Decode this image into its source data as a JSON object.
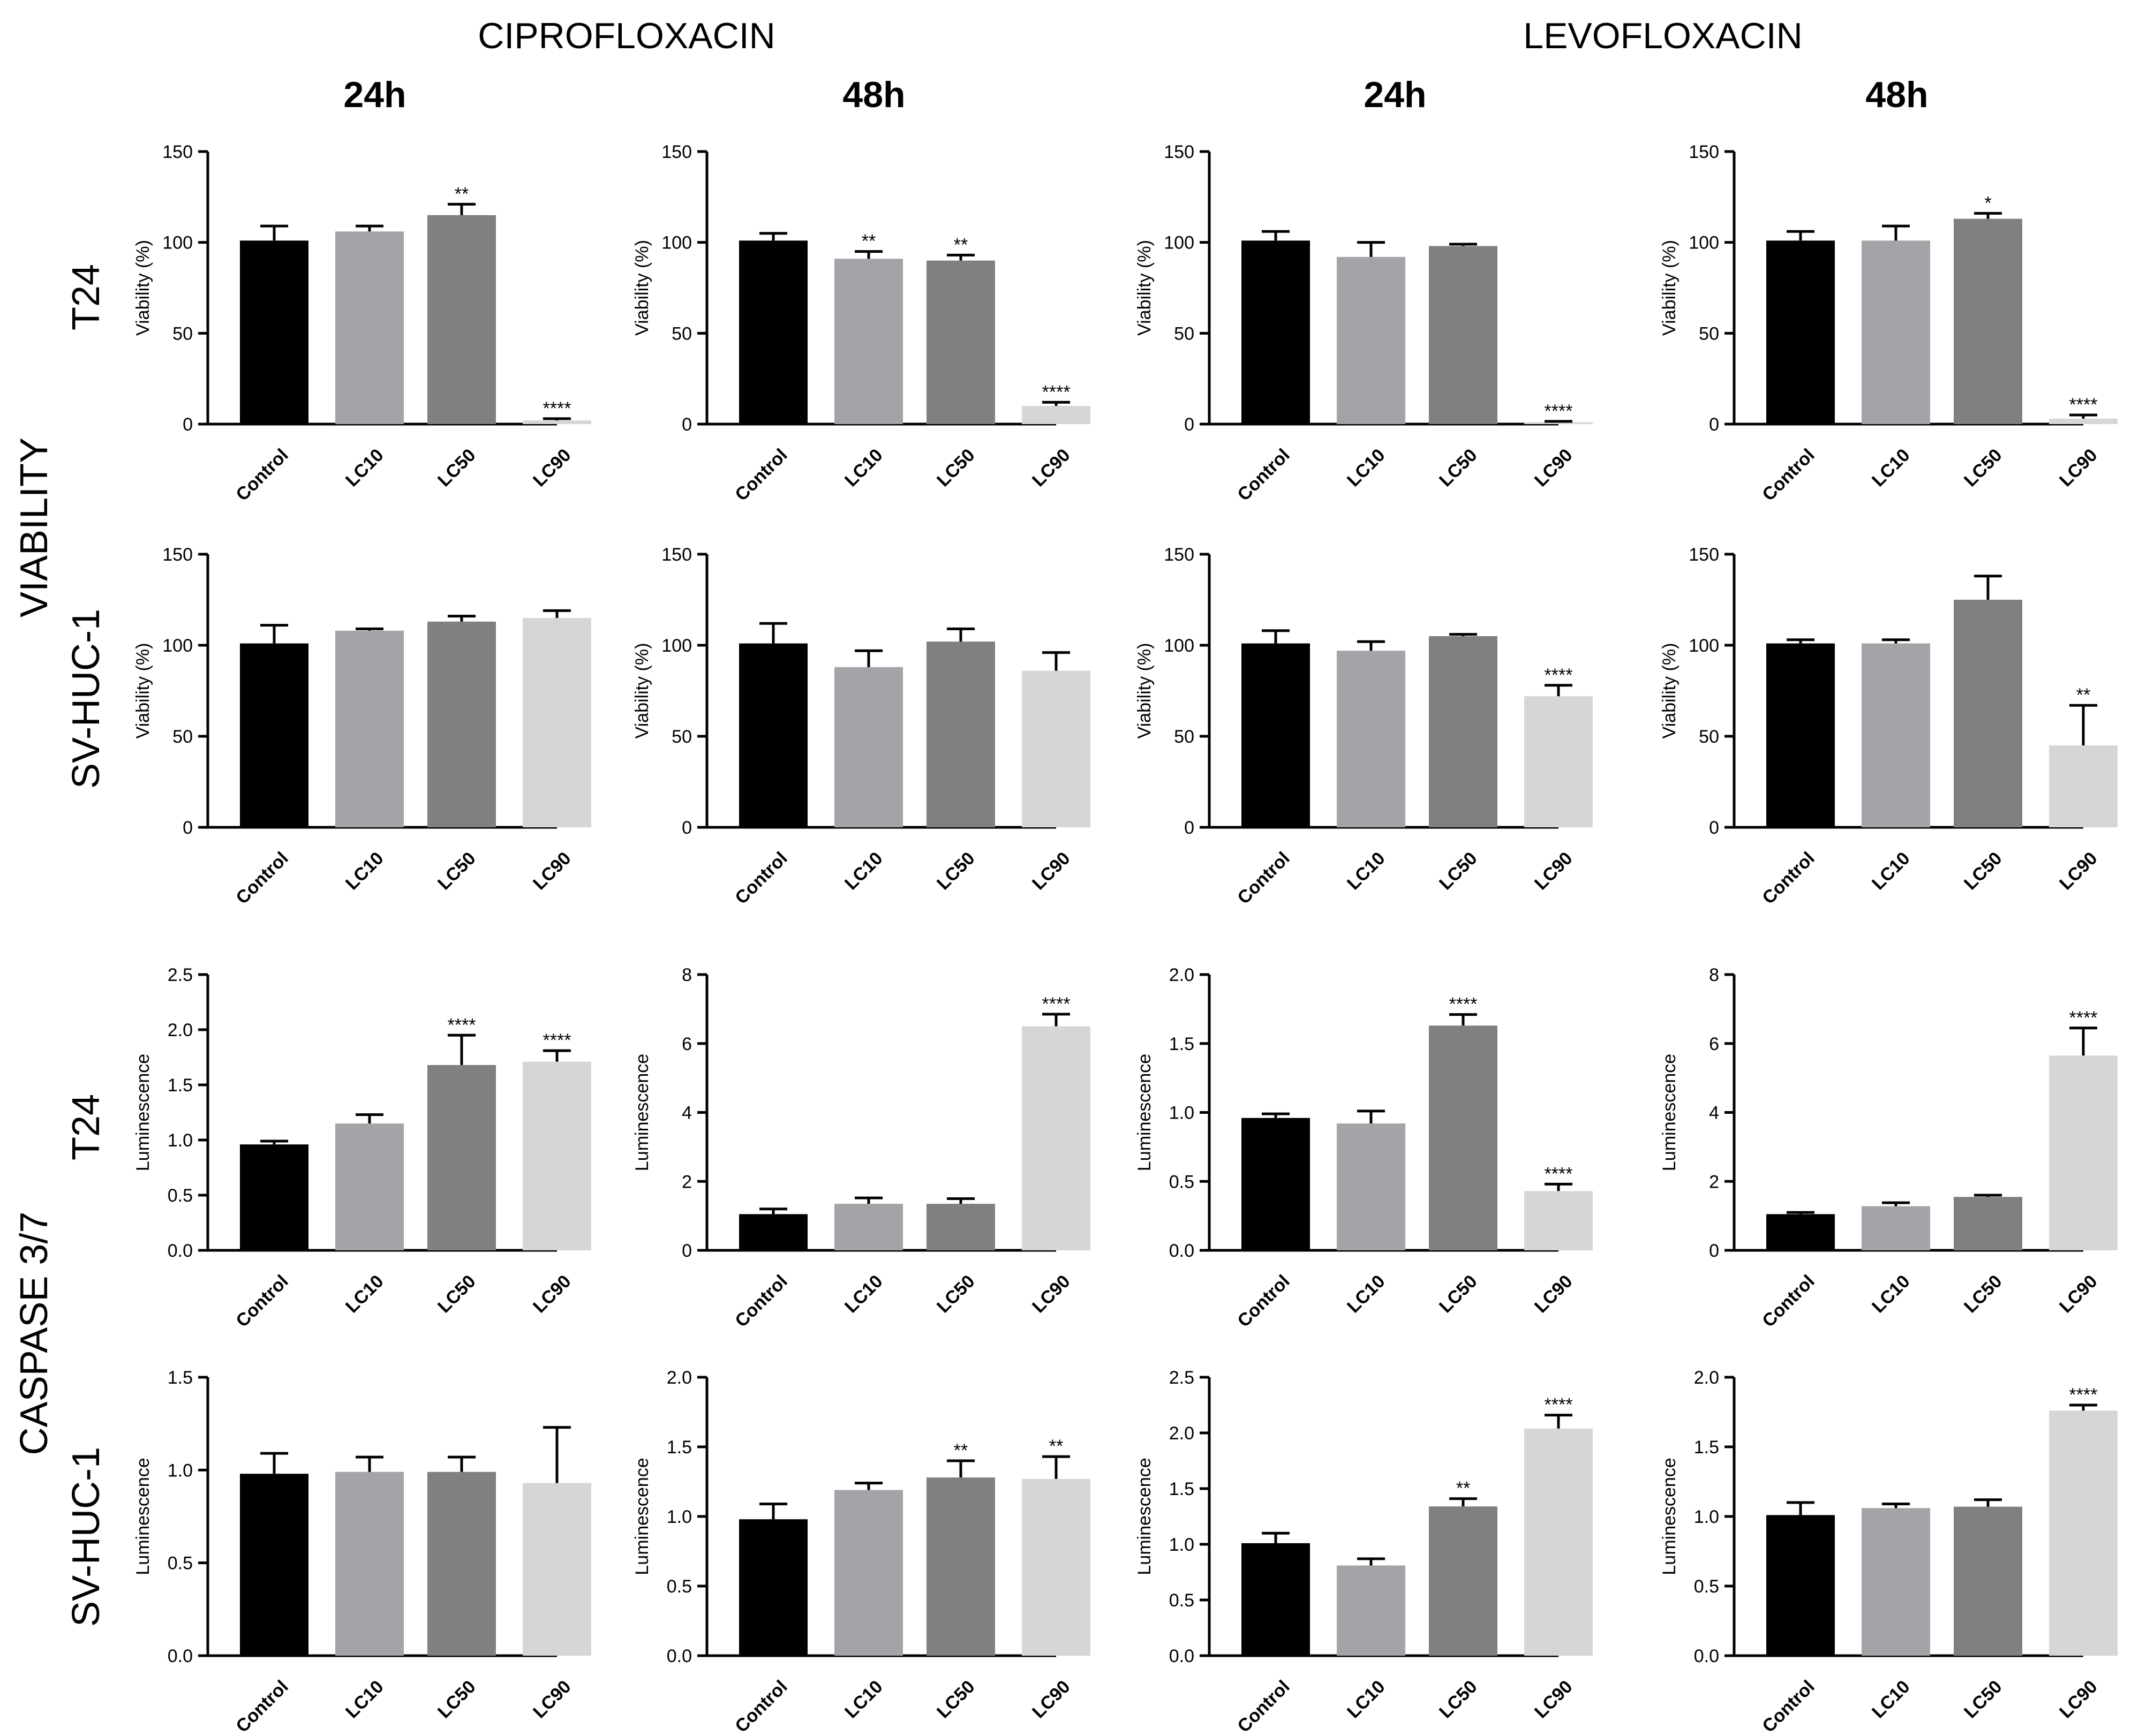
{
  "figure": {
    "columns": [
      {
        "drug": "CIPROFLOXACIN",
        "time": "24h"
      },
      {
        "drug": "CIPROFLOXACIN",
        "time": "48h"
      },
      {
        "drug": "LEVOFLOXACIN",
        "time": "24h"
      },
      {
        "drug": "LEVOFLOXACIN",
        "time": "48h"
      }
    ],
    "drug_headers": [
      "CIPROFLOXACIN",
      "LEVOFLOXACIN"
    ],
    "time_headers": [
      "24h",
      "48h",
      "24h",
      "48h"
    ],
    "row_group_labels": [
      "VIABILITY",
      "CASPASE 3/7"
    ],
    "row_labels": [
      "T24",
      "SV-HUC-1",
      "T24",
      "SV-HUC-1"
    ],
    "bar_colors": [
      "#000000",
      "#a3a3a8",
      "#808080",
      "#d6d6d6"
    ]
  },
  "chart_data": [
    {
      "type": "bar",
      "title": "CIPROFLOXACIN 24h",
      "row": 0,
      "col": 0,
      "cell": "T24",
      "assay": "VIABILITY",
      "ylabel": "Viability (%)",
      "categories": [
        "Control",
        "LC10",
        "LC50",
        "LC90"
      ],
      "values": [
        101,
        106,
        115,
        2
      ],
      "errors": [
        8,
        3,
        6,
        1
      ],
      "significance": [
        "",
        "",
        "**",
        "****"
      ],
      "ylim": [
        0,
        150
      ],
      "yticks": [
        "0",
        "50",
        "100",
        "150"
      ]
    },
    {
      "type": "bar",
      "title": "CIPROFLOXACIN 48h",
      "row": 0,
      "col": 1,
      "cell": "T24",
      "assay": "VIABILITY",
      "ylabel": "Viability (%)",
      "categories": [
        "Control",
        "LC10",
        "LC50",
        "LC90"
      ],
      "values": [
        101,
        91,
        90,
        10
      ],
      "errors": [
        4,
        4,
        3,
        2
      ],
      "significance": [
        "",
        "**",
        "**",
        "****"
      ],
      "ylim": [
        0,
        150
      ],
      "yticks": [
        "0",
        "50",
        "100",
        "150"
      ]
    },
    {
      "type": "bar",
      "title": "LEVOFLOXACIN 24h",
      "row": 0,
      "col": 2,
      "cell": "T24",
      "assay": "VIABILITY",
      "ylabel": "Viability (%)",
      "categories": [
        "Control",
        "LC10",
        "LC50",
        "LC90"
      ],
      "values": [
        101,
        92,
        98,
        1
      ],
      "errors": [
        5,
        8,
        1,
        0.5
      ],
      "significance": [
        "",
        "",
        "",
        "****"
      ],
      "ylim": [
        0,
        150
      ],
      "yticks": [
        "0",
        "50",
        "100",
        "150"
      ]
    },
    {
      "type": "bar",
      "title": "LEVOFLOXACIN 48h",
      "row": 0,
      "col": 3,
      "cell": "T24",
      "assay": "VIABILITY",
      "ylabel": "Viability (%)",
      "categories": [
        "Control",
        "LC10",
        "LC50",
        "LC90"
      ],
      "values": [
        101,
        101,
        113,
        3
      ],
      "errors": [
        5,
        8,
        3,
        2
      ],
      "significance": [
        "",
        "",
        "*",
        "****"
      ],
      "ylim": [
        0,
        150
      ],
      "yticks": [
        "0",
        "50",
        "100",
        "150"
      ]
    },
    {
      "type": "bar",
      "title": "CIPROFLOXACIN 24h",
      "row": 1,
      "col": 0,
      "cell": "SV-HUC-1",
      "assay": "VIABILITY",
      "ylabel": "Viability (%)",
      "categories": [
        "Control",
        "LC10",
        "LC50",
        "LC90"
      ],
      "values": [
        101,
        108,
        113,
        115
      ],
      "errors": [
        10,
        1,
        3,
        4
      ],
      "significance": [
        "",
        "",
        "",
        ""
      ],
      "ylim": [
        0,
        150
      ],
      "yticks": [
        "0",
        "50",
        "100",
        "150"
      ]
    },
    {
      "type": "bar",
      "title": "CIPROFLOXACIN 48h",
      "row": 1,
      "col": 1,
      "cell": "SV-HUC-1",
      "assay": "VIABILITY",
      "ylabel": "Viability (%)",
      "categories": [
        "Control",
        "LC10",
        "LC50",
        "LC90"
      ],
      "values": [
        101,
        88,
        102,
        86
      ],
      "errors": [
        11,
        9,
        7,
        10
      ],
      "significance": [
        "",
        "",
        "",
        ""
      ],
      "ylim": [
        0,
        150
      ],
      "yticks": [
        "0",
        "50",
        "100",
        "150"
      ]
    },
    {
      "type": "bar",
      "title": "LEVOFLOXACIN 24h",
      "row": 1,
      "col": 2,
      "cell": "SV-HUC-1",
      "assay": "VIABILITY",
      "ylabel": "Viability (%)",
      "categories": [
        "Control",
        "LC10",
        "LC50",
        "LC90"
      ],
      "values": [
        101,
        97,
        105,
        72
      ],
      "errors": [
        7,
        5,
        1,
        6
      ],
      "significance": [
        "",
        "",
        "",
        "****"
      ],
      "ylim": [
        0,
        150
      ],
      "yticks": [
        "0",
        "50",
        "100",
        "150"
      ]
    },
    {
      "type": "bar",
      "title": "LEVOFLOXACIN 48h",
      "row": 1,
      "col": 3,
      "cell": "SV-HUC-1",
      "assay": "VIABILITY",
      "ylabel": "Viability (%)",
      "categories": [
        "Control",
        "LC10",
        "LC50",
        "LC90"
      ],
      "values": [
        101,
        101,
        125,
        45
      ],
      "errors": [
        2,
        2,
        13,
        22
      ],
      "significance": [
        "",
        "",
        "",
        "**"
      ],
      "ylim": [
        0,
        150
      ],
      "yticks": [
        "0",
        "50",
        "100",
        "150"
      ]
    },
    {
      "type": "bar",
      "title": "CIPROFLOXACIN 24h",
      "row": 2,
      "col": 0,
      "cell": "T24",
      "assay": "CASPASE 3/7",
      "ylabel": "Luminescence",
      "categories": [
        "Control",
        "LC10",
        "LC50",
        "LC90"
      ],
      "values": [
        0.96,
        1.15,
        1.68,
        1.71
      ],
      "errors": [
        0.03,
        0.08,
        0.27,
        0.1
      ],
      "significance": [
        "",
        "",
        "****",
        "****"
      ],
      "ylim": [
        0,
        2.5
      ],
      "yticks": [
        "0.0",
        "0.5",
        "1.0",
        "1.5",
        "2.0",
        "2.5"
      ]
    },
    {
      "type": "bar",
      "title": "CIPROFLOXACIN 48h",
      "row": 2,
      "col": 1,
      "cell": "T24",
      "assay": "CASPASE 3/7",
      "ylabel": "Luminescence",
      "categories": [
        "Control",
        "LC10",
        "LC50",
        "LC90"
      ],
      "values": [
        1.05,
        1.35,
        1.35,
        6.5
      ],
      "errors": [
        0.15,
        0.17,
        0.15,
        0.35
      ],
      "significance": [
        "",
        "",
        "",
        "****"
      ],
      "ylim": [
        0,
        8
      ],
      "yticks": [
        "0",
        "2",
        "4",
        "6",
        "8"
      ]
    },
    {
      "type": "bar",
      "title": "LEVOFLOXACIN 24h",
      "row": 2,
      "col": 2,
      "cell": "T24",
      "assay": "CASPASE 3/7",
      "ylabel": "Luminescence",
      "categories": [
        "Control",
        "LC10",
        "LC50",
        "LC90"
      ],
      "values": [
        0.96,
        0.92,
        1.63,
        0.43
      ],
      "errors": [
        0.03,
        0.09,
        0.08,
        0.05
      ],
      "significance": [
        "",
        "",
        "****",
        "****"
      ],
      "ylim": [
        0,
        2.0
      ],
      "yticks": [
        "0.0",
        "0.5",
        "1.0",
        "1.5",
        "2.0"
      ]
    },
    {
      "type": "bar",
      "title": "LEVOFLOXACIN 48h",
      "row": 2,
      "col": 3,
      "cell": "T24",
      "assay": "CASPASE 3/7",
      "ylabel": "Luminescence",
      "categories": [
        "Control",
        "LC10",
        "LC50",
        "LC90"
      ],
      "values": [
        1.05,
        1.28,
        1.55,
        5.65
      ],
      "errors": [
        0.05,
        0.1,
        0.05,
        0.8
      ],
      "significance": [
        "",
        "",
        "",
        "****"
      ],
      "ylim": [
        0,
        8
      ],
      "yticks": [
        "0",
        "2",
        "4",
        "6",
        "8"
      ]
    },
    {
      "type": "bar",
      "title": "CIPROFLOXACIN 24h",
      "row": 3,
      "col": 0,
      "cell": "SV-HUC-1",
      "assay": "CASPASE 3/7",
      "ylabel": "Luminescence",
      "categories": [
        "Control",
        "LC10",
        "LC50",
        "LC90"
      ],
      "values": [
        0.98,
        0.99,
        0.99,
        0.93
      ],
      "errors": [
        0.11,
        0.08,
        0.08,
        0.3
      ],
      "significance": [
        "",
        "",
        "",
        ""
      ],
      "ylim": [
        0,
        1.5
      ],
      "yticks": [
        "0.0",
        "0.5",
        "1.0",
        "1.5"
      ]
    },
    {
      "type": "bar",
      "title": "CIPROFLOXACIN 48h",
      "row": 3,
      "col": 1,
      "cell": "SV-HUC-1",
      "assay": "CASPASE 3/7",
      "ylabel": "Luminescence",
      "categories": [
        "Control",
        "LC10",
        "LC50",
        "LC90"
      ],
      "values": [
        0.98,
        1.19,
        1.28,
        1.27
      ],
      "errors": [
        0.11,
        0.05,
        0.12,
        0.16
      ],
      "significance": [
        "",
        "",
        "**",
        "**"
      ],
      "ylim": [
        0,
        2.0
      ],
      "yticks": [
        "0.0",
        "0.5",
        "1.0",
        "1.5",
        "2.0"
      ]
    },
    {
      "type": "bar",
      "title": "LEVOFLOXACIN 24h",
      "row": 3,
      "col": 2,
      "cell": "SV-HUC-1",
      "assay": "CASPASE 3/7",
      "ylabel": "Luminescence",
      "categories": [
        "Control",
        "LC10",
        "LC50",
        "LC90"
      ],
      "values": [
        1.01,
        0.81,
        1.34,
        2.04
      ],
      "errors": [
        0.09,
        0.06,
        0.07,
        0.12
      ],
      "significance": [
        "",
        "",
        "**",
        "****"
      ],
      "ylim": [
        0,
        2.5
      ],
      "yticks": [
        "0.0",
        "0.5",
        "1.0",
        "1.5",
        "2.0",
        "2.5"
      ]
    },
    {
      "type": "bar",
      "title": "LEVOFLOXACIN 48h",
      "row": 3,
      "col": 3,
      "cell": "SV-HUC-1",
      "assay": "CASPASE 3/7",
      "ylabel": "Luminescence",
      "categories": [
        "Control",
        "LC10",
        "LC50",
        "LC90"
      ],
      "values": [
        1.01,
        1.06,
        1.07,
        1.76
      ],
      "errors": [
        0.09,
        0.03,
        0.05,
        0.04
      ],
      "significance": [
        "",
        "",
        "",
        "****"
      ],
      "ylim": [
        0,
        2.0
      ],
      "yticks": [
        "0.0",
        "0.5",
        "1.0",
        "1.5",
        "2.0"
      ]
    }
  ]
}
